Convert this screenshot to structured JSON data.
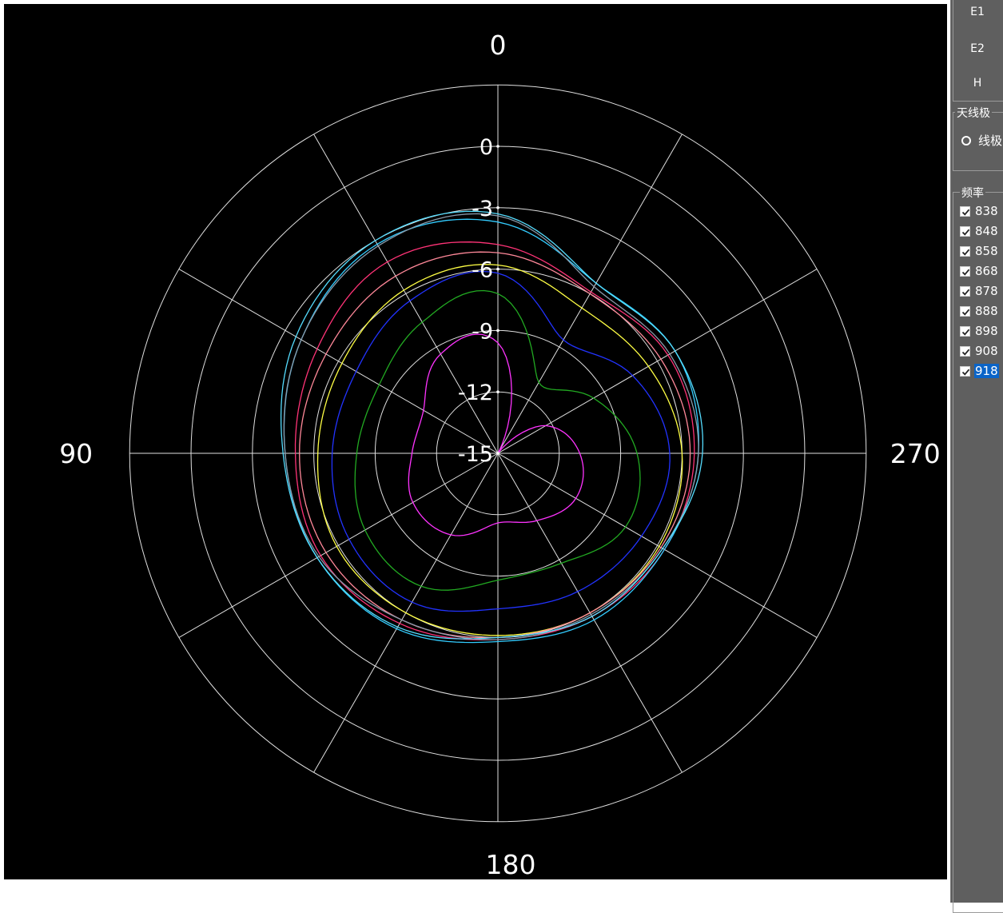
{
  "side_panel": {
    "field_buttons": [
      "E1",
      "E2",
      "H"
    ],
    "polarization_group": {
      "title": "天线极",
      "option": "线极"
    },
    "frequency_group": {
      "title": "频率",
      "items": [
        {
          "label": "838",
          "checked": true,
          "selected": false
        },
        {
          "label": "848",
          "checked": true,
          "selected": false
        },
        {
          "label": "858",
          "checked": true,
          "selected": false
        },
        {
          "label": "868",
          "checked": true,
          "selected": false
        },
        {
          "label": "878",
          "checked": true,
          "selected": false
        },
        {
          "label": "888",
          "checked": true,
          "selected": false
        },
        {
          "label": "898",
          "checked": true,
          "selected": false
        },
        {
          "label": "908",
          "checked": true,
          "selected": false
        },
        {
          "label": "918",
          "checked": true,
          "selected": true
        }
      ]
    }
  },
  "chart_data": {
    "type": "polar-line",
    "background": "#000000",
    "grid_color": "#e0e0e0",
    "angle_labels": [
      "0",
      "90",
      "180",
      "270"
    ],
    "radial_labels": [
      "0",
      "-3",
      "-6",
      "-9",
      "-12",
      "-15"
    ],
    "radial_range": [
      -15,
      0
    ],
    "angle_direction": "counterclockwise, 0 at top",
    "series": [
      {
        "color": "#ff33ff",
        "angles": [
          0,
          30,
          60,
          90,
          120,
          150,
          180,
          210,
          240,
          270,
          300,
          330
        ],
        "values": [
          -9.6,
          -9.4,
          -10.8,
          -10.8,
          -10.2,
          -10.4,
          -11.6,
          -11.2,
          -10.6,
          -11.0,
          -12.3,
          -15.0
        ]
      },
      {
        "color": "#22aa22",
        "angles": [
          0,
          30,
          60,
          90,
          120,
          150,
          180,
          210,
          240,
          270,
          300,
          330
        ],
        "values": [
          -7.2,
          -7.6,
          -8.3,
          -8.1,
          -7.5,
          -7.5,
          -8.8,
          -8.8,
          -7.8,
          -8.2,
          -9.6,
          -11.0
        ]
      },
      {
        "color": "#2233ff",
        "angles": [
          0,
          30,
          60,
          90,
          120,
          150,
          180,
          210,
          240,
          270,
          300,
          330
        ],
        "values": [
          -6.2,
          -6.4,
          -7.0,
          -6.9,
          -6.6,
          -6.6,
          -7.4,
          -7.2,
          -6.9,
          -6.6,
          -7.4,
          -8.6
        ]
      },
      {
        "color": "#ffff44",
        "angles": [
          0,
          30,
          60,
          90,
          120,
          150,
          180,
          210,
          240,
          270,
          300,
          330
        ],
        "values": [
          -5.8,
          -5.8,
          -6.2,
          -6.2,
          -5.9,
          -6.0,
          -6.1,
          -6.0,
          -5.9,
          -6.0,
          -6.5,
          -6.8
        ]
      },
      {
        "color": "#ff8899",
        "angles": [
          0,
          30,
          60,
          90,
          120,
          150,
          180,
          210,
          240,
          270,
          300,
          330
        ],
        "values": [
          -5.2,
          -5.0,
          -5.3,
          -5.3,
          -5.3,
          -5.6,
          -6.0,
          -6.0,
          -5.8,
          -5.6,
          -5.8,
          -6.0
        ]
      },
      {
        "color": "#ff3377",
        "angles": [
          0,
          30,
          60,
          90,
          120,
          150,
          180,
          210,
          240,
          270,
          300,
          330
        ],
        "values": [
          -4.8,
          -4.2,
          -4.8,
          -5.1,
          -5.0,
          -5.4,
          -5.9,
          -5.8,
          -5.6,
          -5.4,
          -5.4,
          -5.9
        ]
      },
      {
        "color": "#33ccff",
        "angles": [
          0,
          30,
          60,
          90,
          120,
          150,
          180,
          210,
          240,
          270,
          300,
          330
        ],
        "values": [
          -3.7,
          -3.2,
          -3.9,
          -4.6,
          -4.8,
          -5.1,
          -5.8,
          -5.6,
          -5.6,
          -5.2,
          -5.0,
          -5.4
        ]
      },
      {
        "color": "#8899aa",
        "angles": [
          0,
          30,
          60,
          90,
          120,
          150,
          180,
          210,
          240,
          270,
          300,
          330
        ],
        "values": [
          -3.4,
          -3.3,
          -3.9,
          -4.6,
          -4.9,
          -5.6,
          -5.9,
          -5.9,
          -5.7,
          -5.2,
          -5.3,
          -5.6
        ]
      },
      {
        "color": "#55ddff",
        "angles": [
          0,
          30,
          60,
          90,
          120,
          150,
          180,
          210,
          240,
          270,
          300,
          330
        ],
        "values": [
          -3.3,
          -3.0,
          -3.6,
          -4.5,
          -4.8,
          -5.2,
          -6.0,
          -5.8,
          -5.7,
          -5.0,
          -5.0,
          -5.4
        ]
      }
    ]
  }
}
